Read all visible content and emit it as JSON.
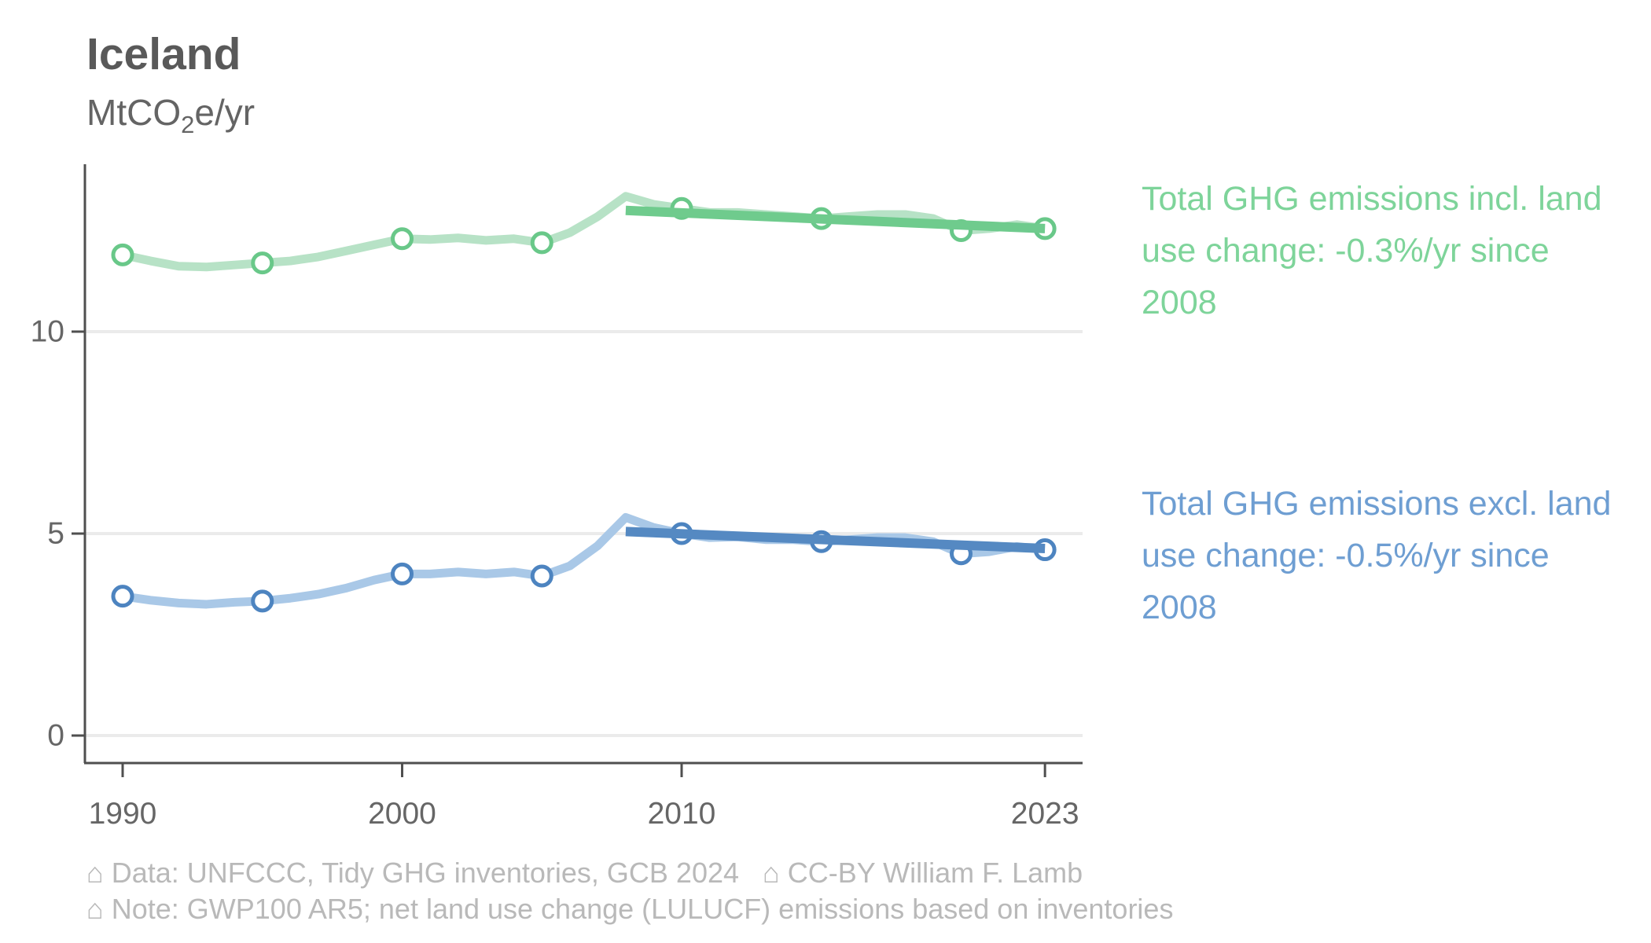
{
  "header": {
    "title": "Iceland",
    "unit_prefix": "MtCO",
    "unit_sub": "2",
    "unit_suffix": "e/yr"
  },
  "chart_data": {
    "type": "line",
    "title": "Iceland",
    "ylabel": "MtCO₂e/yr",
    "xlabel": "",
    "xlim": [
      1990,
      2023
    ],
    "ylim": [
      0,
      14
    ],
    "xticks": [
      1990,
      2000,
      2010,
      2023
    ],
    "yticks": [
      0,
      5,
      10
    ],
    "grid": "horizontal",
    "legend_position": "right",
    "x": [
      1990,
      1991,
      1992,
      1993,
      1994,
      1995,
      1996,
      1997,
      1998,
      1999,
      2000,
      2001,
      2002,
      2003,
      2004,
      2005,
      2006,
      2007,
      2008,
      2009,
      2010,
      2011,
      2012,
      2013,
      2014,
      2015,
      2016,
      2017,
      2018,
      2019,
      2020,
      2021,
      2022,
      2023
    ],
    "series": [
      {
        "name": "Total GHG emissions incl. land use change",
        "values": [
          11.9,
          11.75,
          11.62,
          11.6,
          11.65,
          11.7,
          11.75,
          11.85,
          12.0,
          12.15,
          12.3,
          12.28,
          12.32,
          12.26,
          12.3,
          12.2,
          12.45,
          12.85,
          13.35,
          13.15,
          13.05,
          12.95,
          12.95,
          12.9,
          12.85,
          12.8,
          12.85,
          12.9,
          12.9,
          12.8,
          12.5,
          12.55,
          12.65,
          12.55
        ],
        "marker_years": [
          1990,
          1995,
          2000,
          2005,
          2010,
          2015,
          2020,
          2023
        ],
        "trend": {
          "x_start": 2008,
          "x_end": 2023,
          "y_start": 13.0,
          "y_end": 12.55,
          "label": "-0.3%/yr since 2008"
        },
        "line_color": "#b7e2c6",
        "trend_color": "#6fcb8d",
        "marker_color": "#69c889"
      },
      {
        "name": "Total GHG emissions excl. land use change",
        "values": [
          3.45,
          3.35,
          3.28,
          3.25,
          3.3,
          3.33,
          3.4,
          3.5,
          3.65,
          3.85,
          4.0,
          4.0,
          4.05,
          4.0,
          4.05,
          3.95,
          4.2,
          4.7,
          5.4,
          5.15,
          5.0,
          4.9,
          4.92,
          4.85,
          4.85,
          4.8,
          4.85,
          4.9,
          4.9,
          4.8,
          4.5,
          4.55,
          4.68,
          4.6
        ],
        "marker_years": [
          1990,
          1995,
          2000,
          2005,
          2010,
          2015,
          2020,
          2023
        ],
        "trend": {
          "x_start": 2008,
          "x_end": 2023,
          "y_start": 5.05,
          "y_end": 4.63,
          "label": "-0.5%/yr since 2008"
        },
        "line_color": "#a9c8e7",
        "trend_color": "#5589c2",
        "marker_color": "#4d84c0"
      }
    ]
  },
  "legend": {
    "incl": {
      "text": "Total GHG emissions incl. land use change: -0.3%/yr since 2008",
      "color": "#7ed49a"
    },
    "excl": {
      "text": "Total GHG emissions excl. land use change: -0.5%/yr since 2008",
      "color": "#6e9ed2"
    }
  },
  "footer": {
    "line1": "⌂ Data: UNFCCC, Tidy GHG inventories, GCB 2024   ⌂ CC-BY William F. Lamb",
    "line2": "⌂ Note: GWP100 AR5; net land use change (LULUCF) emissions based on inventories"
  },
  "colors": {
    "axis": "#4f4f4f",
    "tick_label": "#666666",
    "gridline": "#ebebeb",
    "title": "#595959",
    "footer": "#b9b9b9"
  }
}
